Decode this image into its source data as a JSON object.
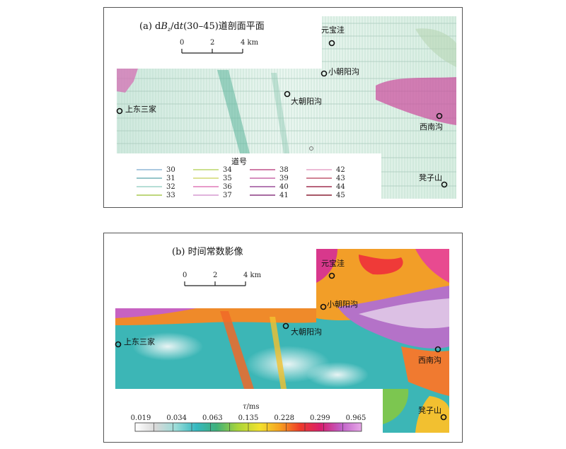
{
  "panel_a": {
    "title_prefix": "(a) d",
    "title_b": "B",
    "title_sub": "z",
    "title_mid": "/d",
    "title_t": "t",
    "title_suffix": "(30–45)道剖面平面",
    "scale": {
      "ticks": [
        "0",
        "2",
        "4 km"
      ]
    },
    "places": [
      "元宝洼",
      "小朝阳沟",
      "大朝阳沟",
      "上东三家",
      "西南沟",
      "凳子山"
    ],
    "legend_title": "道号",
    "legend_items": [
      {
        "label": "30",
        "color": "#8fb7d6"
      },
      {
        "label": "31",
        "color": "#73b2b8"
      },
      {
        "label": "32",
        "color": "#9ed3c9"
      },
      {
        "label": "33",
        "color": "#a8c850"
      },
      {
        "label": "34",
        "color": "#bcd66a"
      },
      {
        "label": "35",
        "color": "#d2d870"
      },
      {
        "label": "36",
        "color": "#e07ab8"
      },
      {
        "label": "37",
        "color": "#d59ad0"
      },
      {
        "label": "38",
        "color": "#c0508a"
      },
      {
        "label": "39",
        "color": "#c86aa8"
      },
      {
        "label": "40",
        "color": "#9b4e9a"
      },
      {
        "label": "41",
        "color": "#8a3a82"
      },
      {
        "label": "42",
        "color": "#e6a4c8"
      },
      {
        "label": "43",
        "color": "#c05a70"
      },
      {
        "label": "44",
        "color": "#a03050"
      },
      {
        "label": "45",
        "color": "#8a2035"
      }
    ]
  },
  "panel_b": {
    "title": "(b) 时间常数影像",
    "scale": {
      "ticks": [
        "0",
        "2",
        "4 km"
      ]
    },
    "places": [
      "元宝洼",
      "小朝阳沟",
      "大朝阳沟",
      "上东三家",
      "西南沟",
      "凳子山"
    ],
    "colorbar_title_sym": "τ",
    "colorbar_title_unit": "/ms",
    "colorbar_ticks": [
      "0.019",
      "0.034",
      "0.063",
      "0.135",
      "0.228",
      "0.299",
      "0.965"
    ],
    "colorbar_colors": [
      "#ffffff",
      "#d8d8d8",
      "#9adcd8",
      "#34b8c0",
      "#3fb07a",
      "#a6d43a",
      "#f2e22e",
      "#f6a020",
      "#ee3a2a",
      "#d81e6e",
      "#c060c8",
      "#e8a8e8"
    ]
  }
}
